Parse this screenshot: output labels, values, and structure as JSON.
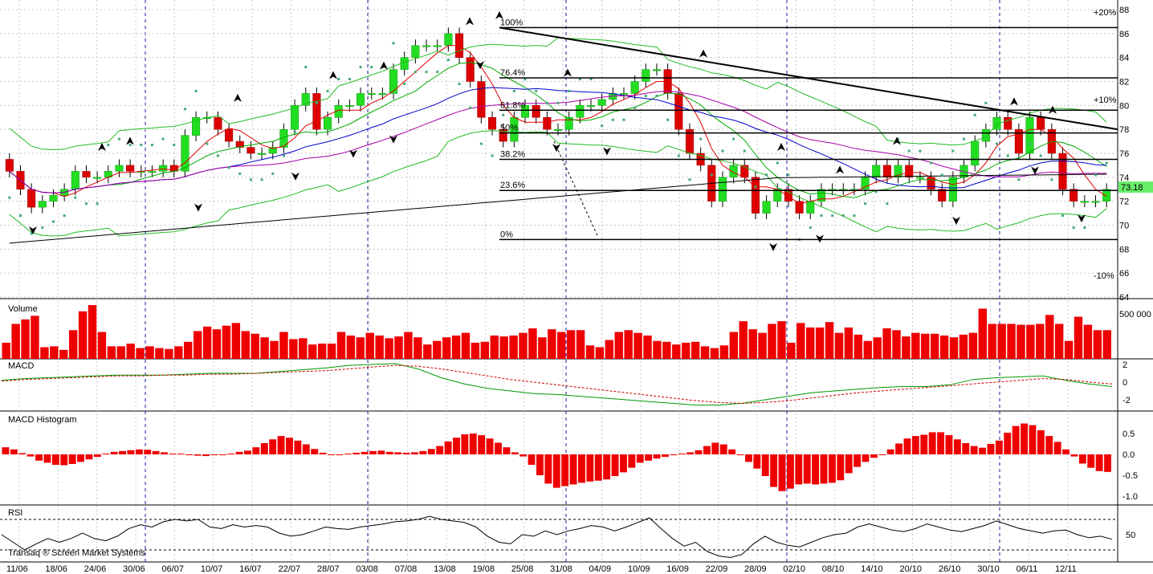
{
  "footer": {
    "credit": "Transaq ® Screen Market Systems"
  },
  "chart_data": [
    {
      "panel": "price",
      "type": "candlestick",
      "ylim": [
        64,
        88
      ],
      "y_ticks": [
        64,
        66,
        68,
        70,
        72,
        74,
        76,
        78,
        80,
        82,
        84,
        86,
        88
      ],
      "percent_marks": [
        {
          "label": "+20%",
          "value": 87.8,
          "color": "#008000"
        },
        {
          "label": "+10%",
          "value": 80.5,
          "color": "#008000"
        },
        {
          "label": "-10%",
          "value": 65.8,
          "color": "#c00000"
        }
      ],
      "last_price": "73.18",
      "x_tick_labels": [
        "11/06",
        "18/06",
        "24/06",
        "30/06",
        "06/07",
        "10/07",
        "16/07",
        "22/07",
        "28/07",
        "03/08",
        "07/08",
        "13/08",
        "19/08",
        "25/08",
        "31/08",
        "04/09",
        "10/09",
        "16/09",
        "22/09",
        "28/09",
        "02/10",
        "08/10",
        "14/10",
        "20/10",
        "26/10",
        "30/10",
        "06/11",
        "12/11"
      ],
      "fibonacci": [
        {
          "label": "100%",
          "value": 86.5
        },
        {
          "label": "76.4%",
          "value": 82.3
        },
        {
          "label": "61.8%",
          "value": 79.6
        },
        {
          "label": "50%",
          "value": 77.7
        },
        {
          "label": "38.2%",
          "value": 75.5
        },
        {
          "label": "23.6%",
          "value": 72.9
        },
        {
          "label": "0%",
          "value": 68.8
        }
      ],
      "closes": [
        74.5,
        73,
        71.5,
        72,
        72.5,
        73,
        74.5,
        74,
        74,
        74.5,
        75,
        74.5,
        74.5,
        74.5,
        75,
        74.5,
        77.5,
        79,
        79,
        78,
        77,
        76.5,
        76,
        76,
        76.5,
        78,
        80,
        81,
        78,
        79,
        80,
        80,
        81,
        81,
        81,
        83,
        84,
        85,
        85,
        85,
        86,
        84,
        82,
        79,
        78,
        77,
        79,
        80,
        79,
        78,
        78,
        79,
        80,
        80,
        80.5,
        81,
        81,
        82,
        83,
        83,
        81,
        78,
        76,
        75,
        72,
        74,
        75,
        74,
        71,
        72,
        73,
        72,
        71,
        72,
        73,
        73,
        73,
        73,
        74,
        75,
        74,
        75,
        74,
        74,
        73,
        72,
        74,
        75,
        77,
        78,
        79,
        78,
        76,
        79,
        78,
        76,
        73,
        72,
        72,
        72,
        73
      ]
    },
    {
      "panel": "volume",
      "type": "bar",
      "title": "Volume",
      "y_ticks_label": "500 000",
      "values": [
        180000,
        390000,
        440000,
        480000,
        130000,
        140000,
        100000,
        320000,
        530000,
        600000,
        300000,
        140000,
        140000,
        170000,
        120000,
        140000,
        120000,
        110000,
        140000,
        190000,
        310000,
        360000,
        330000,
        370000,
        400000,
        310000,
        280000,
        240000,
        200000,
        300000,
        220000,
        230000,
        160000,
        170000,
        170000,
        300000,
        260000,
        240000,
        290000,
        260000,
        230000,
        250000,
        300000,
        240000,
        160000,
        200000,
        240000,
        260000,
        290000,
        180000,
        190000,
        260000,
        250000,
        260000,
        290000,
        340000,
        240000,
        330000,
        300000,
        320000,
        320000,
        150000,
        130000,
        210000,
        300000,
        320000,
        290000,
        260000,
        200000,
        190000,
        160000,
        180000,
        190000,
        140000,
        120000,
        150000,
        300000,
        420000,
        330000,
        290000,
        390000,
        420000,
        180000,
        400000,
        350000,
        350000,
        410000,
        290000,
        350000,
        270000,
        200000,
        240000,
        340000,
        320000,
        250000,
        290000,
        280000,
        280000,
        260000,
        240000,
        270000,
        290000,
        560000,
        390000,
        390000,
        390000,
        380000,
        380000,
        390000,
        490000,
        390000,
        200000,
        470000,
        380000,
        320000,
        320000
      ]
    },
    {
      "panel": "macd",
      "type": "line",
      "title": "MACD",
      "y_ticks": [
        2,
        0,
        -2
      ],
      "series": [
        {
          "values": [
            0.2,
            0.4,
            0.5,
            0.6,
            0.7,
            0.8,
            0.8,
            0.8,
            0.9,
            1.0,
            1.0,
            1.0,
            1.2,
            1.4,
            1.6,
            1.9,
            2.0,
            2.1,
            1.5,
            0.5,
            -0.2,
            -0.7,
            -1.0,
            -1.3,
            -1.4,
            -1.6,
            -1.8,
            -2.0,
            -2.2,
            -2.4,
            -2.6,
            -2.6,
            -2.4,
            -2.0,
            -1.6,
            -1.2,
            -1.0,
            -0.8,
            -0.6,
            -0.5,
            -0.5,
            -0.3,
            0.3,
            0.5,
            0.6,
            0.7,
            0.2,
            -0.2,
            -0.5
          ]
        },
        {
          "values": [
            0.1,
            0.3,
            0.4,
            0.5,
            0.6,
            0.7,
            0.7,
            0.8,
            0.8,
            0.9,
            0.9,
            1.0,
            1.1,
            1.2,
            1.3,
            1.5,
            1.7,
            1.9,
            1.8,
            1.5,
            1.1,
            0.7,
            0.3,
            0.0,
            -0.3,
            -0.6,
            -0.9,
            -1.2,
            -1.5,
            -1.8,
            -2.1,
            -2.3,
            -2.4,
            -2.3,
            -2.1,
            -1.8,
            -1.5,
            -1.2,
            -1.0,
            -0.8,
            -0.6,
            -0.4,
            -0.2,
            0.0,
            0.2,
            0.4,
            0.3,
            0.0,
            -0.2
          ]
        }
      ]
    },
    {
      "panel": "macd_histogram",
      "type": "bar",
      "title": "MACD Histogram",
      "y_ticks": [
        0.5,
        0.0,
        -0.5,
        -1.0
      ],
      "values": [
        0.17,
        0.12,
        0.03,
        -0.05,
        -0.15,
        -0.2,
        -0.25,
        -0.26,
        -0.23,
        -0.18,
        -0.12,
        -0.06,
        0.02,
        0.06,
        0.08,
        0.1,
        0.12,
        0.11,
        0.08,
        0.05,
        0.02,
        0.02,
        0.0,
        -0.03,
        -0.04,
        -0.02,
        0.0,
        0.02,
        0.06,
        0.09,
        0.17,
        0.27,
        0.36,
        0.44,
        0.4,
        0.33,
        0.24,
        0.13,
        0.04,
        0.0,
        0.0,
        0.02,
        0.04,
        0.06,
        0.08,
        0.09,
        0.06,
        0.05,
        0.04,
        0.05,
        0.08,
        0.13,
        0.2,
        0.31,
        0.4,
        0.48,
        0.5,
        0.46,
        0.38,
        0.28,
        0.17,
        0.05,
        -0.05,
        -0.25,
        -0.5,
        -0.7,
        -0.8,
        -0.76,
        -0.72,
        -0.68,
        -0.65,
        -0.63,
        -0.6,
        -0.52,
        -0.43,
        -0.32,
        -0.2,
        -0.15,
        -0.1,
        -0.06,
        -0.02,
        0.02,
        0.05,
        0.1,
        0.2,
        0.28,
        0.24,
        0.12,
        -0.02,
        -0.18,
        -0.34,
        -0.52,
        -0.78,
        -0.88,
        -0.82,
        -0.72,
        -0.7,
        -0.72,
        -0.7,
        -0.68,
        -0.62,
        -0.45,
        -0.3,
        -0.18,
        -0.08,
        0.0,
        0.12,
        0.26,
        0.38,
        0.44,
        0.47,
        0.53,
        0.53,
        0.46,
        0.36,
        0.27,
        0.2,
        0.16,
        0.25,
        0.33,
        0.52,
        0.68,
        0.74,
        0.7,
        0.58,
        0.44,
        0.3,
        0.12,
        -0.05,
        -0.22,
        -0.32,
        -0.4,
        -0.42
      ]
    },
    {
      "panel": "rsi",
      "type": "line",
      "title": "RSI",
      "y_ticks": [
        50
      ],
      "values": [
        50,
        40,
        30,
        38,
        45,
        40,
        45,
        52,
        45,
        42,
        48,
        58,
        63,
        60,
        67,
        70,
        68,
        70,
        60,
        58,
        63,
        60,
        62,
        60,
        52,
        48,
        50,
        55,
        60,
        58,
        57,
        60,
        62,
        64,
        67,
        68,
        70,
        74,
        70,
        68,
        66,
        60,
        48,
        40,
        38,
        50,
        48,
        55,
        50,
        55,
        58,
        62,
        60,
        55,
        60,
        66,
        72,
        58,
        45,
        35,
        40,
        28,
        22,
        20,
        24,
        38,
        48,
        40,
        36,
        34,
        40,
        46,
        50,
        52,
        60,
        64,
        60,
        56,
        54,
        58,
        64,
        60,
        56,
        54,
        58,
        62,
        68,
        63,
        58,
        55,
        52,
        55,
        56,
        50,
        46,
        48,
        44
      ]
    }
  ]
}
